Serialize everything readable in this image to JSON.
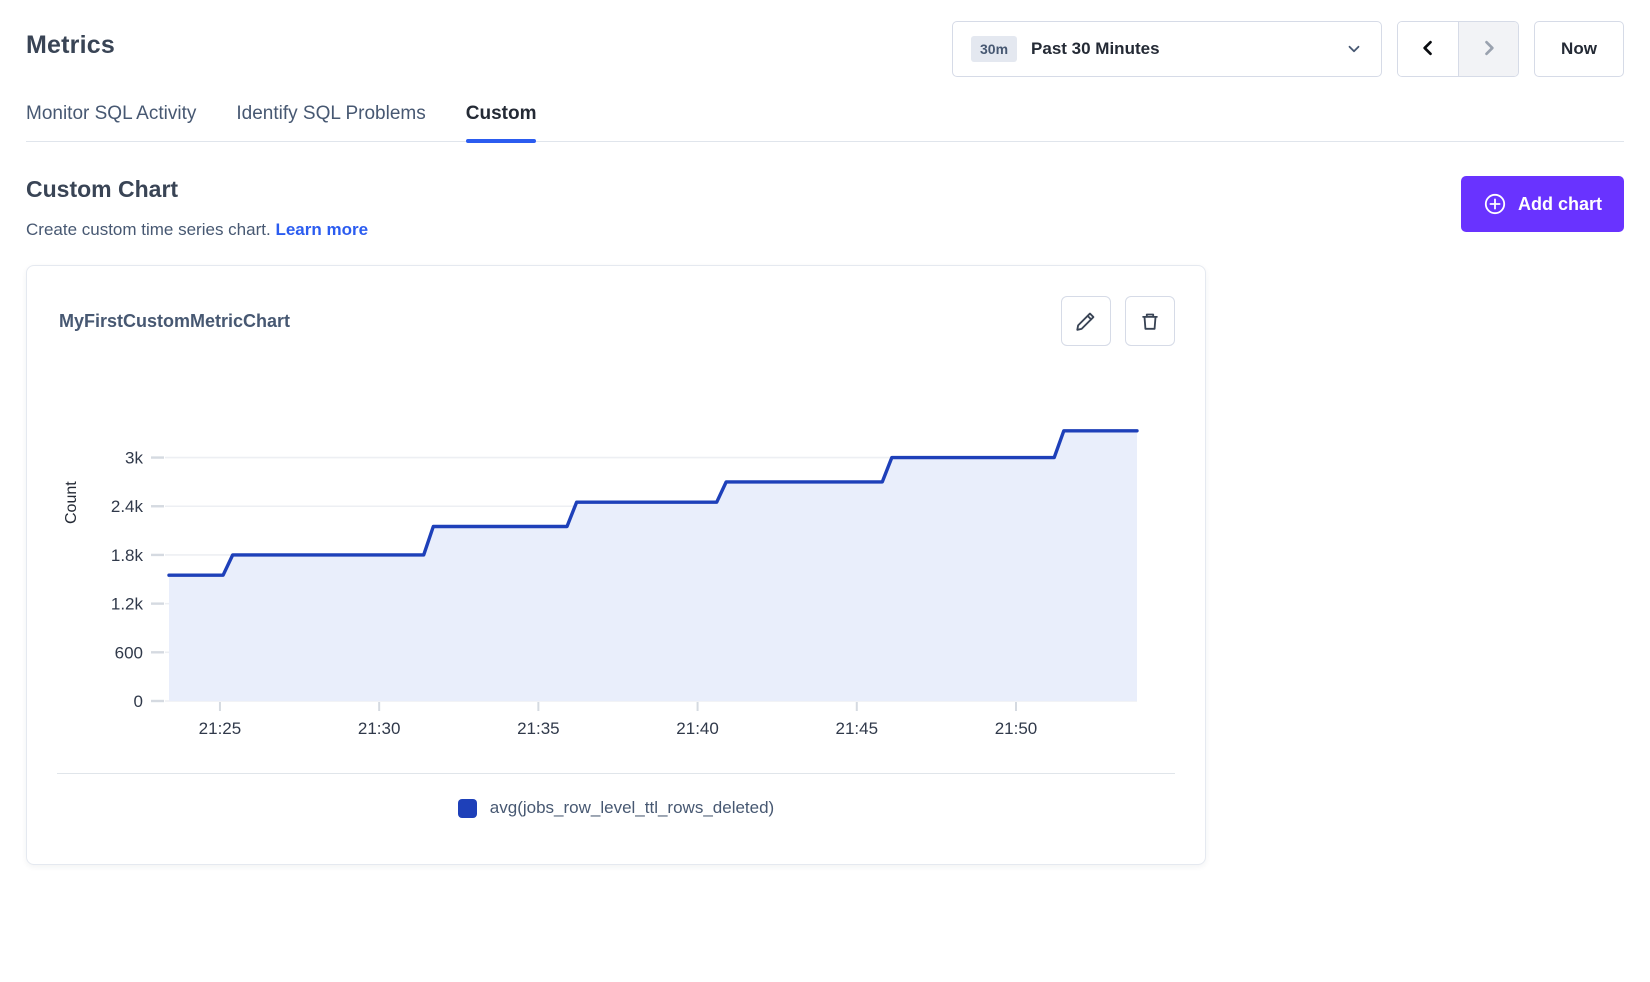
{
  "page": {
    "title": "Metrics",
    "tabs": [
      {
        "label": "Monitor SQL Activity",
        "active": false
      },
      {
        "label": "Identify SQL Problems",
        "active": false
      },
      {
        "label": "Custom",
        "active": true
      }
    ],
    "time_controls": {
      "range_badge": "30m",
      "range_label": "Past 30 Minutes",
      "now_label": "Now"
    },
    "section": {
      "heading": "Custom Chart",
      "subtitle": "Create custom time series chart.",
      "link_label": "Learn more",
      "add_chart_label": "Add chart"
    }
  },
  "card": {
    "title": "MyFirstCustomMetricChart"
  },
  "chart_data": {
    "type": "area",
    "title": "MyFirstCustomMetricChart",
    "xlabel": "",
    "ylabel": "Count",
    "grid": "horizontal",
    "legend_position": "bottom",
    "y_ticks": [
      "0",
      "600",
      "1.2k",
      "1.8k",
      "2.4k",
      "3k"
    ],
    "y_tick_values": [
      0,
      600,
      1200,
      1800,
      2400,
      3000
    ],
    "ylim": [
      0,
      3660
    ],
    "x_ticks": [
      "21:25",
      "21:30",
      "21:35",
      "21:40",
      "21:45",
      "21:50"
    ],
    "x_tick_minutes": [
      25,
      30,
      35,
      40,
      45,
      50
    ],
    "xlim_minutes": [
      23.4,
      53.8
    ],
    "series": [
      {
        "name": "avg(jobs_row_level_ttl_rows_deleted)",
        "color": "#1e40b9",
        "fill": "#e9eefb",
        "step_points_min_value": [
          [
            23.4,
            1550
          ],
          [
            25.1,
            1550
          ],
          [
            25.4,
            1800
          ],
          [
            31.4,
            1800
          ],
          [
            31.7,
            2150
          ],
          [
            35.9,
            2150
          ],
          [
            36.2,
            2450
          ],
          [
            40.6,
            2450
          ],
          [
            40.9,
            2700
          ],
          [
            45.8,
            2700
          ],
          [
            46.1,
            3000
          ],
          [
            51.2,
            3000
          ],
          [
            51.5,
            3330
          ],
          [
            53.8,
            3330
          ]
        ]
      }
    ]
  },
  "colors": {
    "accent_blue": "#2b5cf0",
    "brand_purple": "#6933ff",
    "series_blue": "#1e40b9",
    "series_fill": "#e9eefb",
    "grid_line": "#edeff3",
    "tick_mark": "#d5dae1",
    "heading_text": "#394455",
    "muted_text": "#475872"
  }
}
